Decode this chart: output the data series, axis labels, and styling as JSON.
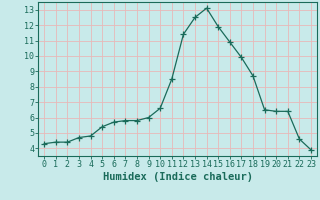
{
  "x": [
    0,
    1,
    2,
    3,
    4,
    5,
    6,
    7,
    8,
    9,
    10,
    11,
    12,
    13,
    14,
    15,
    16,
    17,
    18,
    19,
    20,
    21,
    22,
    23
  ],
  "y": [
    4.3,
    4.4,
    4.4,
    4.7,
    4.8,
    5.4,
    5.7,
    5.8,
    5.8,
    6.0,
    6.6,
    8.5,
    11.4,
    12.5,
    13.1,
    11.9,
    10.9,
    9.9,
    8.7,
    6.5,
    6.4,
    6.4,
    4.6,
    3.9
  ],
  "line_color": "#1a6b5a",
  "marker": "+",
  "marker_size": 4,
  "bg_color": "#c8eaea",
  "grid_color": "#e8b8b8",
  "xlabel": "Humidex (Indice chaleur)",
  "xlim": [
    -0.5,
    23.5
  ],
  "ylim": [
    3.5,
    13.5
  ],
  "yticks": [
    4,
    5,
    6,
    7,
    8,
    9,
    10,
    11,
    12,
    13
  ],
  "xticks": [
    0,
    1,
    2,
    3,
    4,
    5,
    6,
    7,
    8,
    9,
    10,
    11,
    12,
    13,
    14,
    15,
    16,
    17,
    18,
    19,
    20,
    21,
    22,
    23
  ],
  "tick_color": "#1a6b5a",
  "axis_color": "#1a6b5a",
  "tick_fontsize": 6.0,
  "xlabel_fontsize": 7.5
}
